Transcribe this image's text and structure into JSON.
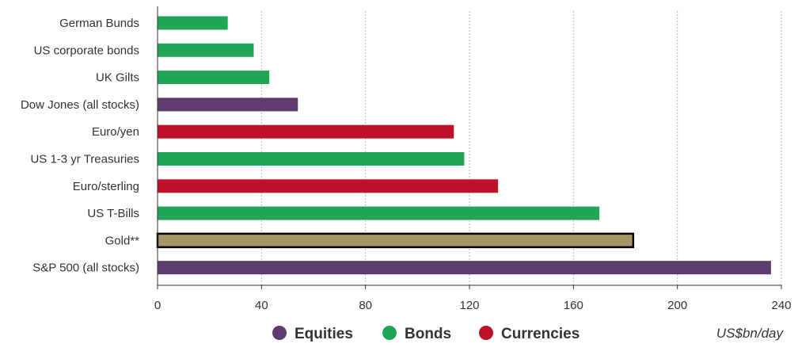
{
  "chart_data": {
    "type": "bar",
    "orientation": "horizontal",
    "categories": [
      "German Bunds",
      "US corporate bonds",
      "UK Gilts",
      "Dow Jones (all stocks)",
      "Euro/yen",
      "US 1-3 yr Treasuries",
      "Euro/sterling",
      "US T-Bills",
      "Gold**",
      "S&P 500 (all stocks)"
    ],
    "values": [
      27,
      37,
      43,
      54,
      114,
      118,
      131,
      170,
      183,
      236
    ],
    "groups": [
      "Bonds",
      "Bonds",
      "Bonds",
      "Equities",
      "Currencies",
      "Bonds",
      "Currencies",
      "Bonds",
      "Gold",
      "Equities"
    ],
    "group_colors": {
      "Equities": "#5c3d6e",
      "Bonds": "#22a555",
      "Currencies": "#bf1127",
      "Gold": "#a89565"
    },
    "highlight": {
      "category": "Gold**",
      "border_color": "#000000"
    },
    "xlim": [
      0,
      240
    ],
    "xticks": [
      "0",
      "40",
      "80",
      "120",
      "160",
      "200",
      "240"
    ],
    "xtick_values": [
      0,
      40,
      80,
      120,
      160,
      200,
      240
    ],
    "grid": {
      "x": true,
      "style": "dotted",
      "color": "#b5b5b5"
    },
    "legend": {
      "position": "bottom-center",
      "items": [
        {
          "label": "Equities",
          "color": "#5c3d6e"
        },
        {
          "label": "Bonds",
          "color": "#22a555"
        },
        {
          "label": "Currencies",
          "color": "#bf1127"
        }
      ]
    },
    "unit_label": "US$bn/day",
    "title": "",
    "xlabel": "",
    "ylabel": ""
  }
}
